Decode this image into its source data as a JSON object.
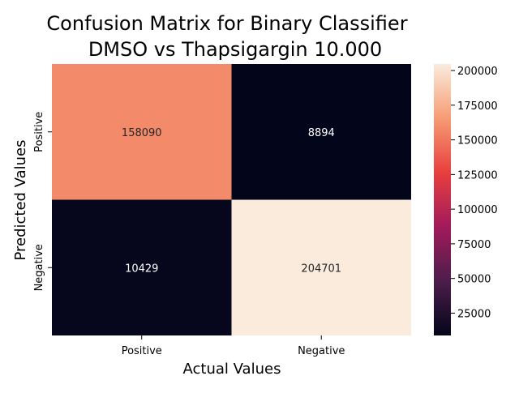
{
  "chart_data": {
    "type": "heatmap",
    "title": "Confusion Matrix for Binary Classifier",
    "subtitle": "DMSO vs Thapsigargin 10.000",
    "xlabel": "Actual Values",
    "ylabel": "Predicted Values",
    "x_categories": [
      "Positive",
      "Negative"
    ],
    "y_categories": [
      "Positive",
      "Negative"
    ],
    "values": [
      [
        158090,
        8894
      ],
      [
        10429,
        204701
      ]
    ],
    "colorbar": {
      "min": 8894,
      "max": 204701,
      "ticks": [
        25000,
        50000,
        75000,
        100000,
        125000,
        150000,
        175000,
        200000
      ],
      "tick_labels": [
        "25000",
        "50000",
        "75000",
        "100000",
        "125000",
        "150000",
        "175000",
        "200000"
      ]
    },
    "colormap": "rocket",
    "colormap_stops": [
      "#03051a",
      "#4c1d4b",
      "#a11a5b",
      "#e83f3f",
      "#f69c73",
      "#faebdd"
    ]
  }
}
